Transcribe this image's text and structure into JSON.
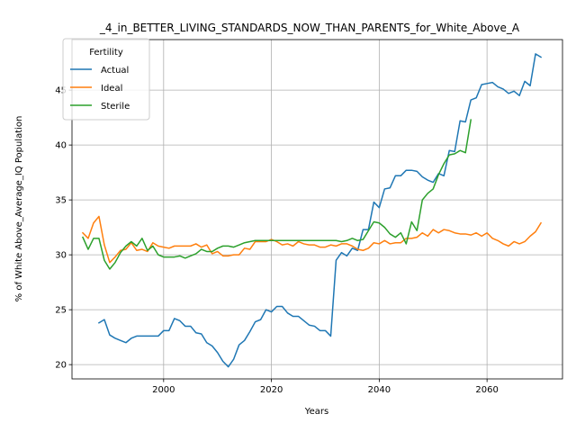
{
  "chart_data": {
    "type": "line",
    "title": "_4_in_BETTER_LIVING_STANDARDS_NOW_THAN_PARENTS_for_White_Above_A",
    "xlabel": "Years",
    "ylabel": "% of White Above_Average_IQ Population",
    "xlim": [
      1983,
      2074
    ],
    "ylim": [
      18.7,
      49.6
    ],
    "xticks": [
      2000,
      2020,
      2040,
      2060
    ],
    "yticks": [
      20,
      25,
      30,
      35,
      40,
      45
    ],
    "grid": true,
    "legend": {
      "title": "Fertility",
      "position": "top-left"
    },
    "series": [
      {
        "name": "Actual",
        "color": "#1f77b4",
        "x": [
          1988,
          1989,
          1990,
          1991,
          1992,
          1993,
          1994,
          1995,
          1996,
          1997,
          1998,
          1999,
          2000,
          2001,
          2002,
          2003,
          2004,
          2005,
          2006,
          2007,
          2008,
          2009,
          2010,
          2011,
          2012,
          2013,
          2014,
          2015,
          2016,
          2017,
          2018,
          2019,
          2020,
          2021,
          2022,
          2023,
          2024,
          2025,
          2026,
          2027,
          2028,
          2029,
          2030,
          2031,
          2032,
          2033,
          2034,
          2035,
          2036,
          2037,
          2038,
          2039,
          2040,
          2041,
          2042,
          2043,
          2044,
          2045,
          2046,
          2047,
          2048,
          2049,
          2050,
          2051,
          2052,
          2053,
          2054,
          2055,
          2056,
          2057,
          2058,
          2059,
          2060,
          2061,
          2062,
          2063,
          2064,
          2065,
          2066,
          2067,
          2068,
          2069,
          2070
        ],
        "values": [
          23.8,
          24.1,
          22.7,
          22.4,
          22.2,
          22.0,
          22.4,
          22.6,
          22.6,
          22.6,
          22.6,
          22.6,
          23.1,
          23.1,
          24.2,
          24.0,
          23.5,
          23.5,
          22.9,
          22.8,
          22.0,
          21.7,
          21.1,
          20.3,
          19.8,
          20.5,
          21.8,
          22.2,
          23.0,
          23.9,
          24.1,
          25.0,
          24.8,
          25.3,
          25.3,
          24.7,
          24.4,
          24.4,
          24.0,
          23.6,
          23.5,
          23.1,
          23.1,
          22.6,
          29.5,
          30.2,
          29.9,
          30.6,
          30.4,
          32.3,
          32.3,
          34.8,
          34.3,
          36.0,
          36.1,
          37.2,
          37.2,
          37.7,
          37.7,
          37.6,
          37.1,
          36.8,
          36.6,
          37.4,
          37.2,
          39.5,
          39.4,
          42.2,
          42.1,
          44.1,
          44.3,
          45.5,
          45.6,
          45.7,
          45.3,
          45.1,
          44.7,
          44.9,
          44.5,
          45.8,
          45.4,
          48.3,
          48.0
        ]
      },
      {
        "name": "Ideal",
        "color": "#ff7f0e",
        "x": [
          1985,
          1986,
          1987,
          1988,
          1989,
          1990,
          1991,
          1992,
          1993,
          1994,
          1995,
          1996,
          1997,
          1998,
          1999,
          2000,
          2001,
          2002,
          2003,
          2004,
          2005,
          2006,
          2007,
          2008,
          2009,
          2010,
          2011,
          2012,
          2013,
          2014,
          2015,
          2016,
          2017,
          2018,
          2019,
          2020,
          2021,
          2022,
          2023,
          2024,
          2025,
          2026,
          2027,
          2028,
          2029,
          2030,
          2031,
          2032,
          2033,
          2034,
          2035,
          2036,
          2037,
          2038,
          2039,
          2040,
          2041,
          2042,
          2043,
          2044,
          2045,
          2046,
          2047,
          2048,
          2049,
          2050,
          2051,
          2052,
          2053,
          2054,
          2055,
          2056,
          2057,
          2058,
          2059,
          2060,
          2061,
          2062,
          2063,
          2064,
          2065,
          2066,
          2067,
          2068,
          2069,
          2070
        ],
        "values": [
          32.0,
          31.5,
          32.9,
          33.5,
          30.9,
          29.3,
          29.8,
          30.4,
          30.5,
          31.1,
          30.4,
          30.5,
          30.3,
          31.1,
          30.8,
          30.7,
          30.6,
          30.8,
          30.8,
          30.8,
          30.8,
          31.0,
          30.7,
          30.9,
          30.1,
          30.3,
          29.9,
          29.9,
          30.0,
          30.0,
          30.6,
          30.5,
          31.2,
          31.2,
          31.2,
          31.4,
          31.2,
          30.9,
          31.0,
          30.8,
          31.2,
          31.0,
          30.9,
          30.9,
          30.7,
          30.7,
          30.9,
          30.8,
          31.0,
          31.0,
          30.8,
          30.5,
          30.4,
          30.6,
          31.1,
          31.0,
          31.3,
          31.0,
          31.1,
          31.1,
          31.5,
          31.5,
          31.6,
          32.0,
          31.7,
          32.3,
          32.0,
          32.3,
          32.2,
          32.0,
          31.9,
          31.9,
          31.8,
          32.0,
          31.7,
          32.0,
          31.5,
          31.3,
          31.0,
          30.8,
          31.2,
          31.0,
          31.2,
          31.7,
          32.1,
          32.9
        ]
      },
      {
        "name": "Sterile",
        "color": "#2ca02c",
        "x": [
          1985,
          1986,
          1987,
          1988,
          1989,
          1990,
          1991,
          1992,
          1993,
          1994,
          1995,
          1996,
          1997,
          1998,
          1999,
          2000,
          2001,
          2002,
          2003,
          2004,
          2005,
          2006,
          2007,
          2008,
          2009,
          2010,
          2011,
          2012,
          2013,
          2014,
          2015,
          2016,
          2017,
          2018,
          2019,
          2020,
          2021,
          2022,
          2023,
          2024,
          2025,
          2026,
          2027,
          2028,
          2029,
          2030,
          2031,
          2032,
          2033,
          2034,
          2035,
          2036,
          2037,
          2038,
          2039,
          2040,
          2041,
          2042,
          2043,
          2044,
          2045,
          2046,
          2047,
          2048,
          2049,
          2050,
          2051,
          2052,
          2053,
          2054,
          2055,
          2056,
          2057
        ],
        "values": [
          31.6,
          30.5,
          31.5,
          31.5,
          29.5,
          28.7,
          29.3,
          30.2,
          30.8,
          31.2,
          30.8,
          31.5,
          30.4,
          30.8,
          30.0,
          29.8,
          29.8,
          29.8,
          29.9,
          29.7,
          29.9,
          30.1,
          30.5,
          30.3,
          30.3,
          30.6,
          30.8,
          30.8,
          30.7,
          30.9,
          31.1,
          31.2,
          31.3,
          31.3,
          31.3,
          31.3,
          31.3,
          31.3,
          31.3,
          31.3,
          31.3,
          31.3,
          31.3,
          31.3,
          31.3,
          31.3,
          31.3,
          31.3,
          31.2,
          31.3,
          31.5,
          31.3,
          31.4,
          32.2,
          33.0,
          32.9,
          32.5,
          31.9,
          31.6,
          32.0,
          31.0,
          33.0,
          32.2,
          35.0,
          35.6,
          36.0,
          37.3,
          38.3,
          39.1,
          39.2,
          39.5,
          39.3,
          42.3
        ]
      }
    ]
  }
}
